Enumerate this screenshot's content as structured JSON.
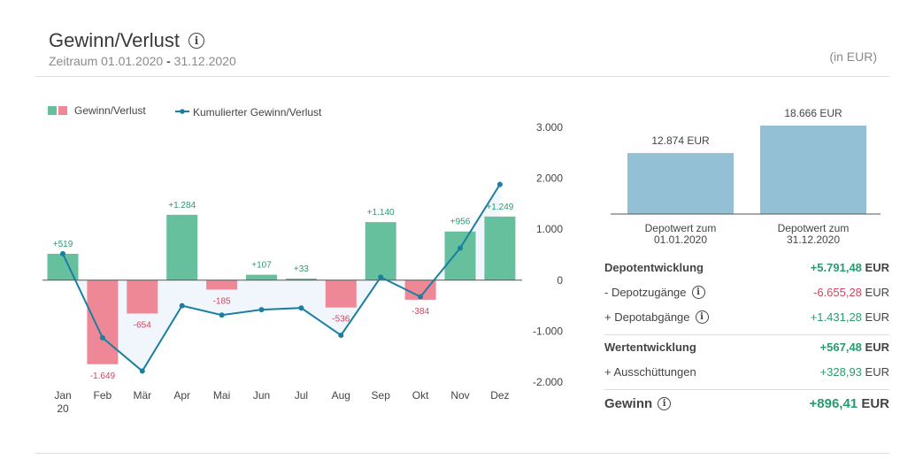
{
  "header": {
    "title": "Gewinn/Verlust",
    "period_label": "Zeitraum",
    "period_from": "01.01.2020",
    "period_sep": "-",
    "period_to": "31.12.2020",
    "unit": "(in EUR)"
  },
  "chart_data": [
    {
      "type": "bar",
      "legend": [
        "Gewinn/Verlust",
        "Kumulierter Gewinn/Verlust"
      ],
      "legend_position": "top-left",
      "categories": [
        "Jan",
        "Feb",
        "Mär",
        "Apr",
        "Mai",
        "Jun",
        "Jul",
        "Aug",
        "Sep",
        "Okt",
        "Nov",
        "Dez"
      ],
      "first_category_sublabel": "20",
      "series": [
        {
          "name": "Gewinn/Verlust",
          "type": "bar",
          "values": [
            519,
            -1649,
            -654,
            1284,
            -185,
            107,
            33,
            -536,
            1140,
            -384,
            956,
            1249
          ],
          "labels": [
            "+519",
            "-1.649",
            "-654",
            "+1.284",
            "-185",
            "+107",
            "+33",
            "-536",
            "+1.140",
            "-384",
            "+956",
            "+1.249"
          ]
        },
        {
          "name": "Kumulierter Gewinn/Verlust",
          "type": "line",
          "values": [
            519,
            -1130,
            -1784,
            -500,
            -685,
            -578,
            -545,
            -1081,
            59,
            -325,
            631,
            1880
          ]
        }
      ],
      "y_axis_position": "right",
      "ylim": [
        -2000,
        3000
      ],
      "yticks": [
        3000,
        2000,
        1000,
        0,
        -1000,
        -2000
      ],
      "ytick_labels": [
        "3.000",
        "2.000",
        "1.000",
        "0",
        "-1.000",
        "-2.000"
      ],
      "colors": {
        "positive": "#66c09e",
        "negative": "#ee8897",
        "line": "#1b7f9f",
        "area": "#eef5fb"
      }
    },
    {
      "type": "bar",
      "categories": [
        "Depotwert zum 01.01.2020",
        "Depotwert zum 31.12.2020"
      ],
      "category_lines": [
        [
          "Depotwert zum",
          "01.01.2020"
        ],
        [
          "Depotwert zum",
          "31.12.2020"
        ]
      ],
      "values": [
        12874,
        18666
      ],
      "labels": [
        "12.874 EUR",
        "18.666 EUR"
      ],
      "color": "#93c0d5"
    }
  ],
  "summary": {
    "depotentwicklung": {
      "label": "Depotentwicklung",
      "value": "+5.791,48",
      "currency": "EUR"
    },
    "depotzugaenge": {
      "label": "- Depotzugänge",
      "value": "-6.655,28",
      "currency": "EUR"
    },
    "depotabgaenge": {
      "label": "+ Depotabgänge",
      "value": "+1.431,28",
      "currency": "EUR"
    },
    "wertentwicklung": {
      "label": "Wertentwicklung",
      "value": "+567,48",
      "currency": "EUR"
    },
    "ausschuettungen": {
      "label": "+ Ausschüttungen",
      "value": "+328,93",
      "currency": "EUR"
    },
    "gewinn": {
      "label": "Gewinn",
      "value": "+896,41",
      "currency": "EUR"
    }
  },
  "icons": {
    "info": "info-icon"
  }
}
